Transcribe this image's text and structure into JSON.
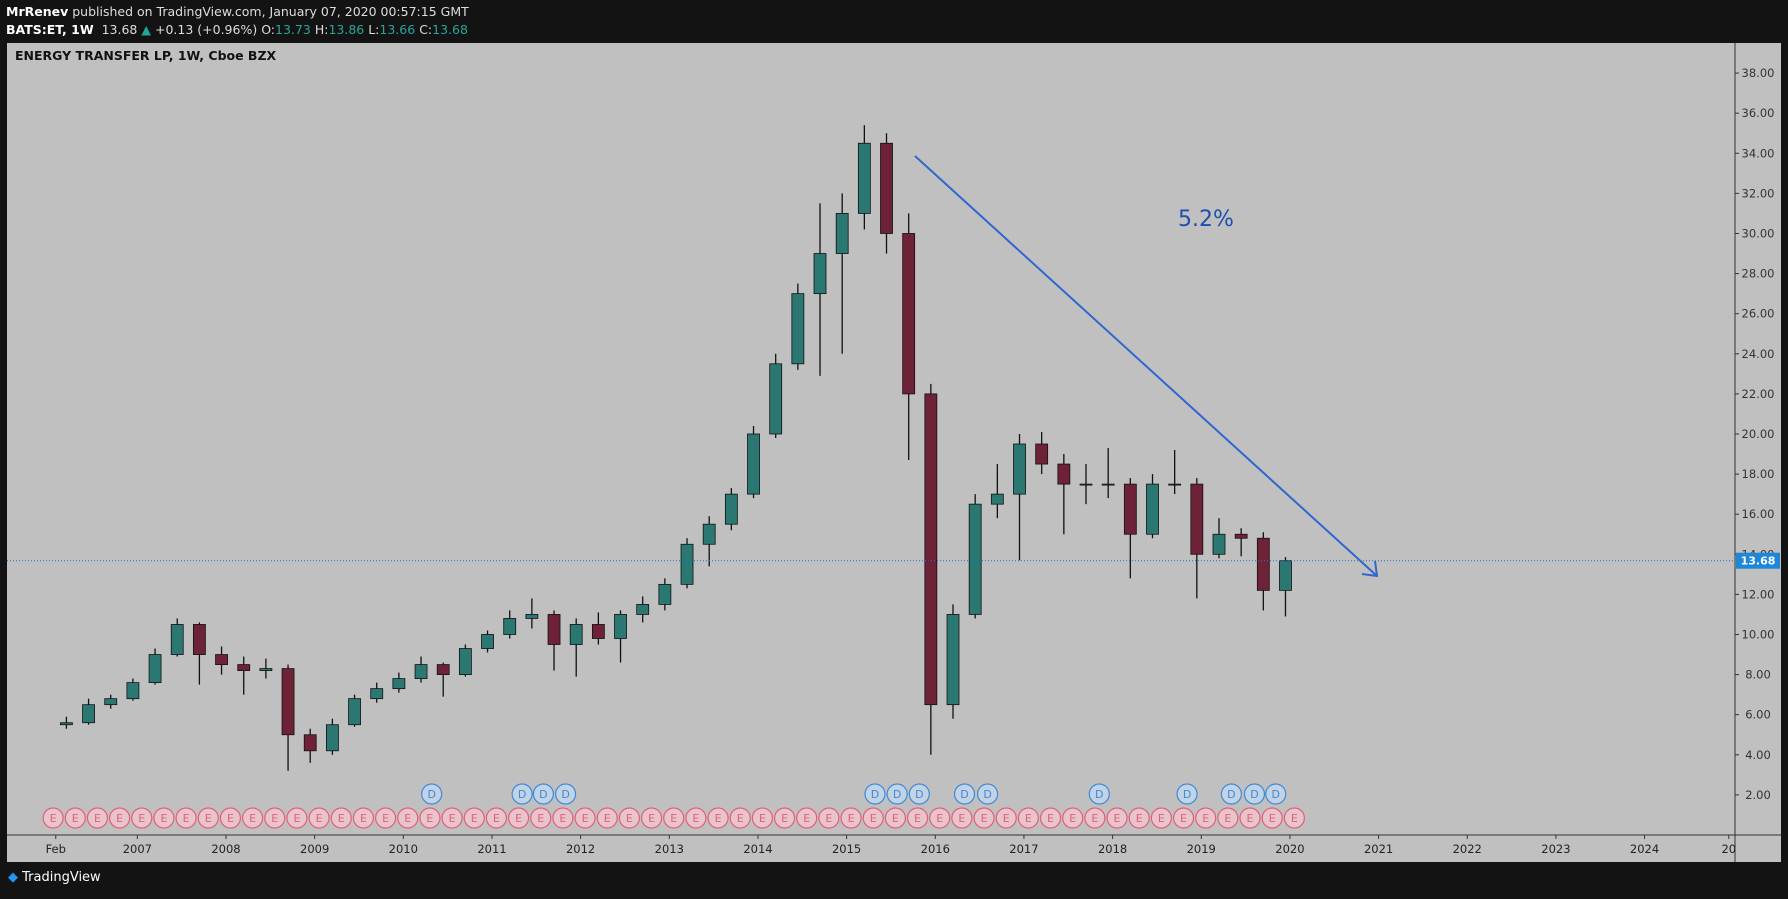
{
  "header": {
    "publisher": "MrRenev",
    "published": "published on TradingView.com, January 07, 2020 00:57:15 GMT",
    "symbol": "BATS:ET, 1W",
    "last": "13.68",
    "arrow": "▲",
    "change": "+0.13 (+0.96%)",
    "o_label": "O:",
    "o": "13.73",
    "h_label": "H:",
    "h": "13.86",
    "l_label": "L:",
    "l": "13.66",
    "c_label": "C:",
    "c": "13.68"
  },
  "footer": {
    "brand": "TradingView"
  },
  "chart_data": {
    "type": "candlestick",
    "title": "ENERGY TRANSFER LP, 1W, Cboe BZX",
    "annotation": "5.2%",
    "up_color": "#2b7873",
    "down_color": "#6e2238",
    "wick_color": "#111111",
    "grid": false,
    "x": [
      2006.2,
      2006.45,
      2006.7,
      2006.95,
      2007.2,
      2007.45,
      2007.7,
      2007.95,
      2008.2,
      2008.45,
      2008.7,
      2008.95,
      2009.2,
      2009.45,
      2009.7,
      2009.95,
      2010.2,
      2010.45,
      2010.7,
      2010.95,
      2011.2,
      2011.45,
      2011.7,
      2011.95,
      2012.2,
      2012.45,
      2012.7,
      2012.95,
      2013.2,
      2013.45,
      2013.7,
      2013.95,
      2014.2,
      2014.45,
      2014.7,
      2014.95,
      2015.2,
      2015.45,
      2015.7,
      2015.95,
      2016.2,
      2016.45,
      2016.7,
      2016.95,
      2017.2,
      2017.45,
      2017.7,
      2017.95,
      2018.2,
      2018.45,
      2018.7,
      2018.95,
      2019.2,
      2019.45,
      2019.7,
      2019.95
    ],
    "open": [
      5.5,
      5.6,
      6.5,
      6.8,
      7.6,
      9.0,
      10.5,
      9.0,
      8.5,
      8.2,
      8.3,
      5.0,
      4.2,
      5.5,
      6.8,
      7.3,
      7.8,
      8.5,
      8.0,
      9.3,
      10.0,
      10.8,
      11.0,
      9.5,
      10.5,
      9.8,
      11.0,
      11.5,
      12.5,
      14.5,
      15.5,
      17.0,
      20.0,
      23.5,
      27.0,
      29.0,
      31.0,
      34.5,
      30.0,
      22.0,
      6.5,
      11.0,
      16.5,
      17.0,
      19.5,
      18.5,
      17.5,
      17.5,
      17.5,
      15.0,
      17.5,
      17.5,
      14.0,
      15.0,
      14.8,
      12.2
    ],
    "high": [
      5.9,
      6.8,
      7.0,
      7.8,
      9.3,
      10.8,
      10.6,
      9.4,
      8.9,
      8.8,
      8.5,
      5.3,
      5.8,
      7.0,
      7.6,
      8.1,
      8.9,
      8.6,
      9.5,
      10.2,
      11.2,
      11.8,
      11.2,
      10.8,
      11.1,
      11.2,
      11.9,
      12.8,
      14.8,
      15.9,
      17.3,
      20.4,
      24.0,
      27.5,
      31.5,
      32.0,
      35.4,
      35.0,
      31.0,
      22.5,
      11.5,
      17.0,
      18.5,
      20.0,
      20.1,
      19.0,
      18.5,
      19.3,
      17.8,
      18.0,
      19.2,
      17.8,
      15.8,
      15.3,
      15.1,
      13.86
    ],
    "low": [
      5.3,
      5.5,
      6.3,
      6.7,
      7.5,
      8.9,
      7.5,
      8.0,
      7.0,
      7.8,
      3.2,
      3.6,
      4.0,
      5.4,
      6.6,
      7.1,
      7.6,
      6.9,
      7.9,
      9.1,
      9.8,
      10.3,
      8.2,
      7.9,
      9.5,
      8.6,
      10.6,
      11.2,
      12.3,
      13.4,
      15.2,
      16.8,
      19.8,
      23.2,
      22.9,
      24.0,
      30.2,
      29.0,
      18.7,
      4.0,
      5.8,
      10.8,
      15.8,
      13.7,
      18.0,
      15.0,
      16.5,
      16.8,
      12.8,
      14.8,
      17.0,
      11.8,
      13.8,
      13.9,
      11.2,
      10.9
    ],
    "close": [
      5.6,
      6.5,
      6.8,
      7.6,
      9.0,
      10.5,
      9.0,
      8.5,
      8.2,
      8.3,
      5.0,
      4.2,
      5.5,
      6.8,
      7.3,
      7.8,
      8.5,
      8.0,
      9.3,
      10.0,
      10.8,
      11.0,
      9.5,
      10.5,
      9.8,
      11.0,
      11.5,
      12.5,
      14.5,
      15.5,
      17.0,
      20.0,
      23.5,
      27.0,
      29.0,
      31.0,
      34.5,
      30.0,
      22.0,
      6.5,
      11.0,
      16.5,
      17.0,
      19.5,
      18.5,
      17.5,
      17.5,
      17.5,
      15.0,
      17.5,
      17.5,
      14.0,
      15.0,
      14.8,
      12.2,
      13.68
    ],
    "close_labels": {
      "55": "13.68"
    },
    "xlim": [
      2005.53,
      2025.02
    ],
    "xticks": [
      {
        "value": 2006.08,
        "label": "Feb"
      },
      2007,
      2008,
      2009,
      2010,
      2011,
      2012,
      2013,
      2014,
      2015,
      2016,
      2017,
      2018,
      2019,
      2020,
      2021,
      2022,
      2023,
      2024,
      {
        "value": 2024.95,
        "label": "20"
      }
    ],
    "ylim": [
      0,
      39.5
    ],
    "yticks": [
      {
        "value": 2,
        "label": "2.00"
      },
      {
        "value": 4,
        "label": "4.00"
      },
      {
        "value": 6,
        "label": "6.00"
      },
      {
        "value": 8,
        "label": "8.00"
      },
      {
        "value": 10,
        "label": "10.00"
      },
      {
        "value": 12,
        "label": "12.00"
      },
      {
        "value": 14,
        "label": "14.00"
      },
      {
        "value": 16,
        "label": "16.00"
      },
      {
        "value": 18,
        "label": "18.00"
      },
      {
        "value": 20,
        "label": "20.00"
      },
      {
        "value": 22,
        "label": "22.00"
      },
      {
        "value": 24,
        "label": "24.00"
      },
      {
        "value": 26,
        "label": "26.00"
      },
      {
        "value": 28,
        "label": "28.00"
      },
      {
        "value": 30,
        "label": "30.00"
      },
      {
        "value": 32,
        "label": "32.00"
      },
      {
        "value": 34,
        "label": "34.00"
      },
      {
        "value": 36,
        "label": "36.00"
      },
      {
        "value": 38,
        "label": "38.00"
      }
    ],
    "events": [
      {
        "name": "E",
        "color": "#e0607a",
        "x": [
          2006.05,
          2006.3,
          2006.55,
          2006.8,
          2007.05,
          2007.3,
          2007.55,
          2007.8,
          2008.05,
          2008.3,
          2008.55,
          2008.8,
          2009.05,
          2009.3,
          2009.55,
          2009.8,
          2010.05,
          2010.3,
          2010.55,
          2010.8,
          2011.05,
          2011.3,
          2011.55,
          2011.8,
          2012.05,
          2012.3,
          2012.55,
          2012.8,
          2013.05,
          2013.3,
          2013.55,
          2013.8,
          2014.05,
          2014.3,
          2014.55,
          2014.8,
          2015.05,
          2015.3,
          2015.55,
          2015.8,
          2016.05,
          2016.3,
          2016.55,
          2016.8,
          2017.05,
          2017.3,
          2017.55,
          2017.8,
          2018.05,
          2018.3,
          2018.55,
          2018.8,
          2019.05,
          2019.3,
          2019.55,
          2019.8,
          2020.05
        ]
      },
      {
        "name": "D",
        "color": "#3d8ad8",
        "x": [
          2010.32,
          2011.34,
          2011.58,
          2011.83,
          2015.32,
          2015.57,
          2015.82,
          2016.33,
          2016.59,
          2017.85,
          2018.84,
          2019.34,
          2019.6,
          2019.84
        ]
      }
    ]
  }
}
